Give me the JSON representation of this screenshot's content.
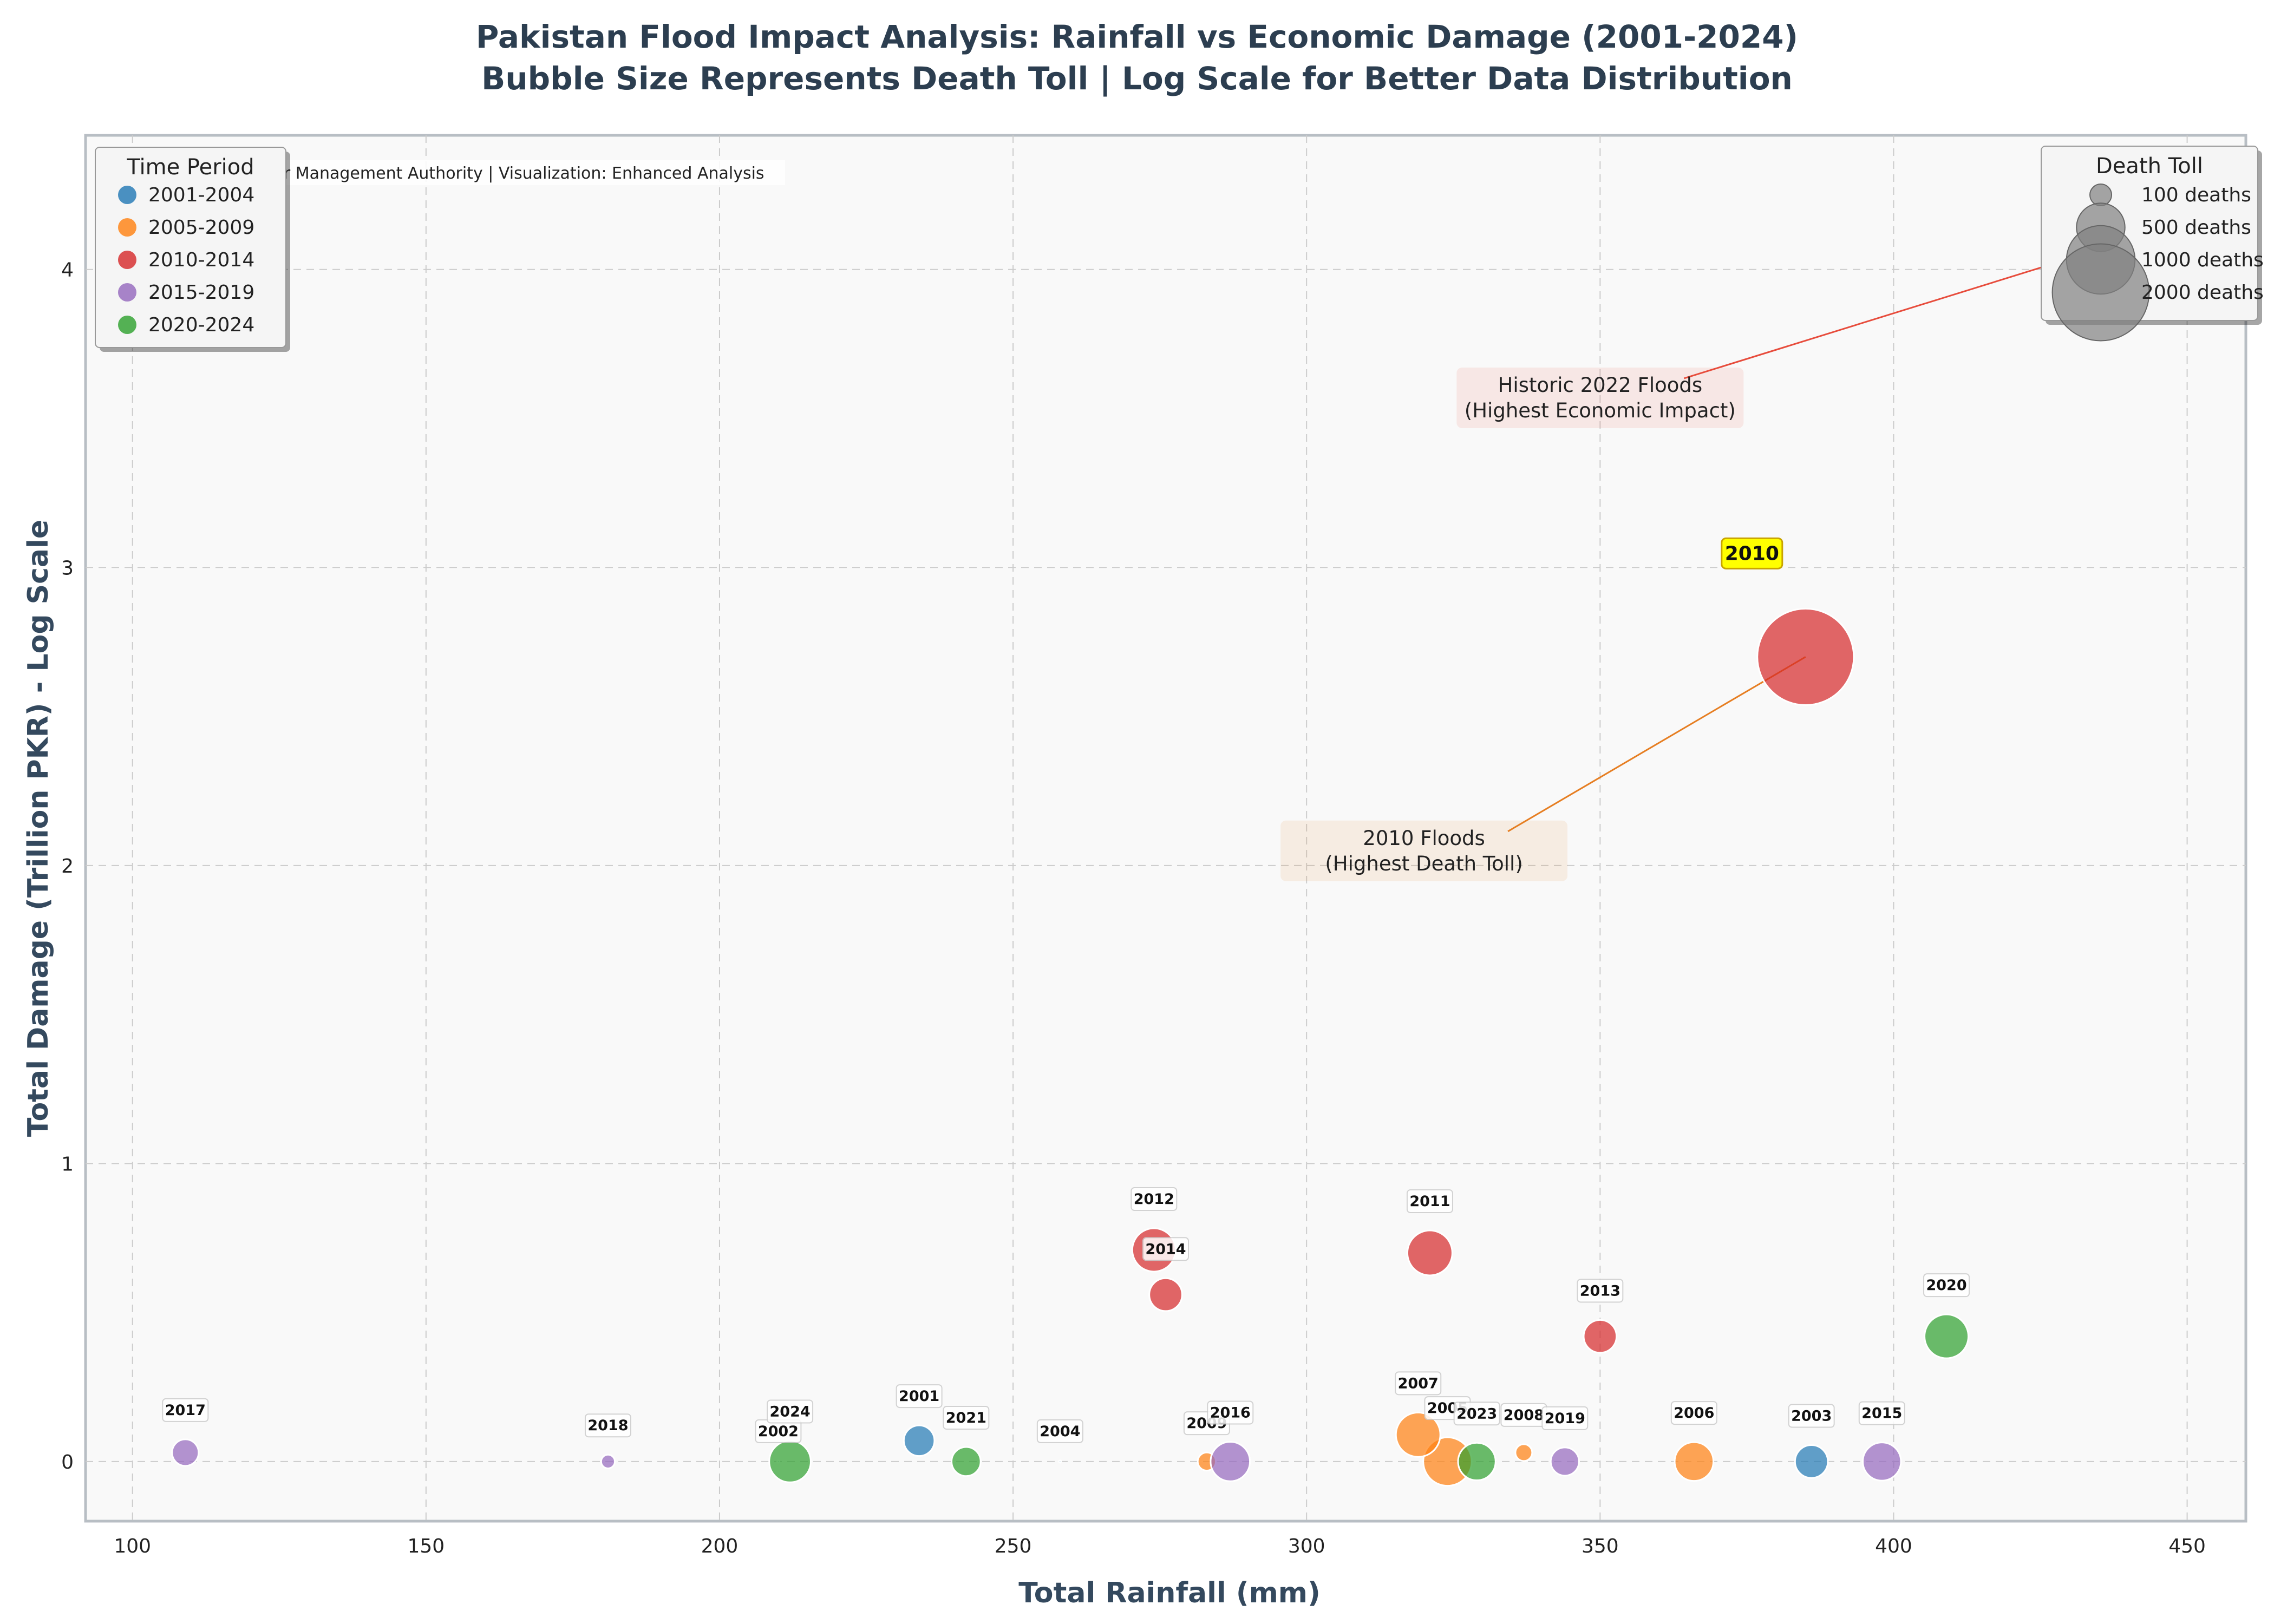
{
  "chart_data": {
    "type": "scatter",
    "title": "Pakistan Flood Impact Analysis: Rainfall vs Economic Damage (2001-2024)",
    "subtitle": "Bubble Size Represents Death Toll | Log Scale for Better Data Distribution",
    "xlabel": "Total Rainfall (mm)",
    "ylabel": "Total Damage (Trillion PKR) - Log Scale",
    "xlim": [
      92,
      460
    ],
    "ylim": [
      -0.2,
      4.45
    ],
    "x_ticks": [
      100,
      150,
      200,
      250,
      300,
      350,
      400,
      450
    ],
    "y_ticks": [
      0,
      1,
      2,
      3,
      4
    ],
    "grid": true,
    "source_note": "ster Management Authority | Visualization: Enhanced Analysis",
    "periods": [
      {
        "name": "2001-2004",
        "color": "#1f77b4"
      },
      {
        "name": "2005-2009",
        "color": "#ff7f0e"
      },
      {
        "name": "2010-2014",
        "color": "#d62728"
      },
      {
        "name": "2015-2019",
        "color": "#9467bd"
      },
      {
        "name": "2020-2024",
        "color": "#2ca02c"
      }
    ],
    "period_legend_title": "Time Period",
    "size_legend_title": "Death Toll",
    "size_legend": [
      {
        "label": "100 deaths",
        "deaths": 100
      },
      {
        "label": "500 deaths",
        "deaths": 500
      },
      {
        "label": "1000 deaths",
        "deaths": 1000
      },
      {
        "label": "2000 deaths",
        "deaths": 2000
      }
    ],
    "points": [
      {
        "year": "2001",
        "x": 234,
        "y": 0.07,
        "deaths": 200,
        "period": 0
      },
      {
        "year": "2002",
        "x": 210,
        "y": 0.0,
        "deaths": 1,
        "period": 0
      },
      {
        "year": "2003",
        "x": 386,
        "y": 0.0,
        "deaths": 230,
        "period": 0
      },
      {
        "year": "2004",
        "x": 258,
        "y": 0.0,
        "deaths": 1,
        "period": 0
      },
      {
        "year": "2005",
        "x": 324,
        "y": 0.0,
        "deaths": 500,
        "period": 1
      },
      {
        "year": "2006",
        "x": 366,
        "y": 0.0,
        "deaths": 320,
        "period": 1
      },
      {
        "year": "2007",
        "x": 319,
        "y": 0.09,
        "deaths": 420,
        "period": 1
      },
      {
        "year": "2008",
        "x": 337,
        "y": 0.03,
        "deaths": 60,
        "period": 1
      },
      {
        "year": "2009",
        "x": 283,
        "y": 0.0,
        "deaths": 70,
        "period": 1
      },
      {
        "year": "2010",
        "x": 385,
        "y": 2.7,
        "deaths": 1985,
        "period": 2
      },
      {
        "year": "2011",
        "x": 321,
        "y": 0.7,
        "deaths": 430,
        "period": 2
      },
      {
        "year": "2012",
        "x": 274,
        "y": 0.71,
        "deaths": 400,
        "period": 2
      },
      {
        "year": "2013",
        "x": 350,
        "y": 0.42,
        "deaths": 230,
        "period": 2
      },
      {
        "year": "2014",
        "x": 276,
        "y": 0.56,
        "deaths": 230,
        "period": 2
      },
      {
        "year": "2015",
        "x": 398,
        "y": 0.0,
        "deaths": 310,
        "period": 3
      },
      {
        "year": "2016",
        "x": 287,
        "y": 0.0,
        "deaths": 330,
        "period": 3
      },
      {
        "year": "2017",
        "x": 109,
        "y": 0.03,
        "deaths": 150,
        "period": 3
      },
      {
        "year": "2018",
        "x": 181,
        "y": 0.0,
        "deaths": 40,
        "period": 3
      },
      {
        "year": "2019",
        "x": 344,
        "y": 0.0,
        "deaths": 170,
        "period": 3
      },
      {
        "year": "2020",
        "x": 409,
        "y": 0.42,
        "deaths": 410,
        "period": 4
      },
      {
        "year": "2021",
        "x": 242,
        "y": 0.0,
        "deaths": 180,
        "period": 4
      },
      {
        "year": "2023",
        "x": 329,
        "y": 0.0,
        "deaths": 300,
        "period": 4
      },
      {
        "year": "2024",
        "x": 212,
        "y": 0.0,
        "deaths": 368,
        "period": 4
      }
    ],
    "highlight_year": "2010",
    "annotations": [
      {
        "line1": "Historic 2022 Floods",
        "line2": "(Highest Economic Impact)",
        "text_x": 350,
        "text_y": 3.58,
        "target_x": 460,
        "target_y": 4.22,
        "color": "#e74c3c"
      },
      {
        "line1": "2010 Floods",
        "line2": "(Highest Death Toll)",
        "text_x": 320,
        "text_y": 2.06,
        "target_x": 385,
        "target_y": 2.7,
        "color": "#e67e22"
      }
    ]
  }
}
